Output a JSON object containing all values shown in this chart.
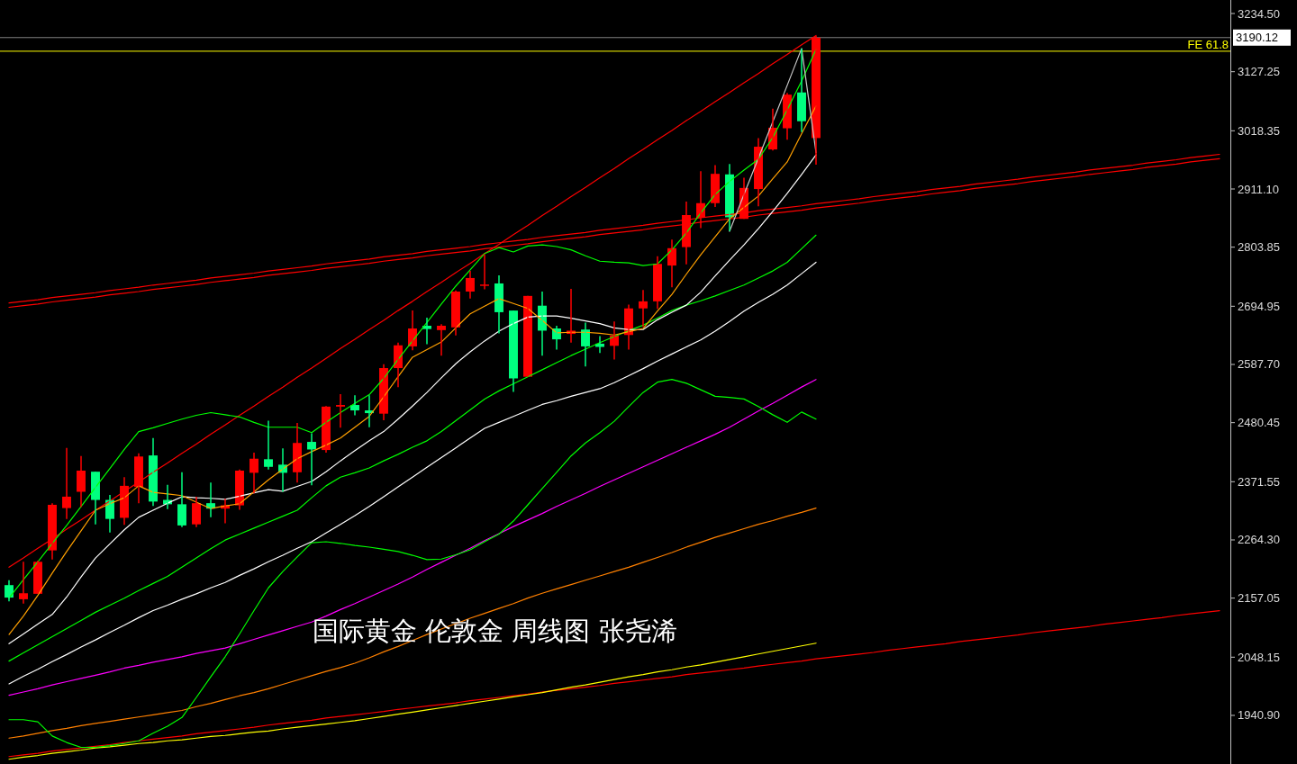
{
  "chart_data": {
    "type": "candlestick",
    "categories": [
      null,
      null,
      null,
      null,
      null,
      null,
      null,
      null,
      null,
      null,
      null,
      null,
      null,
      null,
      null,
      null,
      null,
      null,
      null,
      null,
      null,
      null,
      null,
      null,
      null,
      null,
      null,
      null,
      null,
      null,
      null,
      null,
      null,
      null,
      null,
      null,
      null,
      null,
      null,
      null,
      null,
      null,
      null,
      null,
      null,
      null,
      null,
      null,
      null,
      null,
      null,
      null,
      null,
      null,
      null,
      null,
      null,
      null,
      null,
      null,
      null,
      null,
      null,
      null,
      null,
      null,
      null,
      null,
      null,
      null,
      null,
      null,
      null,
      null,
      null,
      null,
      null,
      null,
      null,
      null,
      null,
      null,
      null,
      null,
      null
    ],
    "ylim": [
      1851.3,
      3259.4
    ],
    "yticks": [
      {
        "value": 3234.5,
        "label": "3234.50"
      },
      {
        "value": 3127.25,
        "label": "3127.25"
      },
      {
        "value": 3018.35,
        "label": "3018.35"
      },
      {
        "value": 2911.1,
        "label": "2911.10"
      },
      {
        "value": 2803.85,
        "label": "2803.85"
      },
      {
        "value": 2694.95,
        "label": "2694.95"
      },
      {
        "value": 2587.7,
        "label": "2587.70"
      },
      {
        "value": 2480.45,
        "label": "2480.45"
      },
      {
        "value": 2371.55,
        "label": "2371.55"
      },
      {
        "value": 2264.3,
        "label": "2264.30"
      },
      {
        "value": 2157.05,
        "label": "2157.05"
      },
      {
        "value": 2048.15,
        "label": "2048.15"
      },
      {
        "value": 1940.9,
        "label": "1940.90"
      }
    ],
    "tick_labels": "y",
    "grid": false,
    "annotations": [
      "国际黄金 伦敦金 周线图 张尧浠"
    ],
    "ref_lines": [
      {
        "axis": "y",
        "value": 3190.12,
        "label": "3190.12",
        "color": "#808080"
      },
      {
        "axis": "y",
        "value": 3165,
        "label": "FE 61.8",
        "color": "#ffff00"
      }
    ],
    "series": [
      {
        "type": "line",
        "color": "#ff0000",
        "values": [
          2701,
          2704,
          2707,
          2711,
          2714,
          2717,
          2720,
          2724,
          2727,
          2730,
          2734,
          2737,
          2740,
          2743,
          2747,
          2750,
          2753,
          2756,
          2760,
          2763,
          2766,
          2769,
          2773,
          2776,
          2779,
          2782,
          2786,
          2789,
          2792,
          2796,
          2799,
          2802,
          2805,
          2809,
          2812,
          2815,
          2818,
          2822,
          2825,
          2828,
          2831,
          2835,
          2838,
          2841,
          2844,
          2848,
          2851,
          2854,
          2858,
          2861,
          2864,
          2867,
          2871,
          2874,
          2877,
          2880,
          2884,
          2887,
          2890,
          2893,
          2897,
          2900,
          2903,
          2906,
          2910,
          2913,
          2916,
          2920,
          2923,
          2926,
          2929,
          2933,
          2936,
          2939,
          2942,
          2946,
          2949,
          2952,
          2955,
          2959,
          2962,
          2965,
          2969,
          2972,
          2975
        ]
      },
      {
        "type": "line",
        "color": "#ff0000",
        "values": [
          2693,
          2696,
          2699,
          2703,
          2706,
          2709,
          2712,
          2716,
          2719,
          2722,
          2726,
          2729,
          2732,
          2735,
          2739,
          2742,
          2745,
          2748,
          2752,
          2755,
          2758,
          2761,
          2765,
          2768,
          2771,
          2774,
          2778,
          2781,
          2784,
          2788,
          2791,
          2794,
          2797,
          2801,
          2804,
          2807,
          2810,
          2814,
          2817,
          2820,
          2823,
          2827,
          2830,
          2833,
          2836,
          2840,
          2843,
          2846,
          2850,
          2853,
          2856,
          2859,
          2863,
          2866,
          2869,
          2872,
          2876,
          2879,
          2882,
          2885,
          2889,
          2892,
          2895,
          2898,
          2902,
          2905,
          2908,
          2912,
          2915,
          2918,
          2921,
          2925,
          2928,
          2931,
          2934,
          2938,
          2941,
          2944,
          2947,
          2951,
          2954,
          2957,
          2961,
          2964,
          2967
        ]
      },
      {
        "type": "line",
        "color": "#ff0000",
        "values": [
          2214,
          2231,
          2249,
          2266,
          2284,
          2301,
          2319,
          2336,
          2354,
          2371,
          2389,
          2406,
          2424,
          2441,
          2459,
          2476,
          2494,
          2511,
          2529,
          2546,
          2564,
          2581,
          2599,
          2617,
          2634,
          2652,
          2669,
          2687,
          2704,
          2722,
          2739,
          2757,
          2774,
          2792,
          2809,
          2827,
          2844,
          2862,
          2879,
          2897,
          2914,
          2932,
          2949,
          2967,
          2984,
          3002,
          3019,
          3037,
          3054,
          3072,
          3089,
          3107,
          3124,
          3142,
          3159,
          3177,
          3194,
          null,
          null,
          null,
          null,
          null,
          null,
          null,
          null,
          null,
          null,
          null,
          null,
          null,
          null,
          null,
          null,
          null,
          null,
          null,
          null,
          null,
          null,
          null,
          null,
          null,
          null,
          null,
          null
        ]
      },
      {
        "type": "line",
        "color": "#ff0000",
        "values": [
          1865,
          1868,
          1871,
          1875,
          1878,
          1881,
          1884,
          1887,
          1891,
          1894,
          1897,
          1900,
          1903,
          1907,
          1910,
          1913,
          1916,
          1919,
          1923,
          1926,
          1929,
          1932,
          1936,
          1939,
          1942,
          1945,
          1948,
          1952,
          1955,
          1958,
          1961,
          1964,
          1968,
          1971,
          1974,
          1977,
          1980,
          1984,
          1987,
          1990,
          1993,
          1996,
          2000,
          2003,
          2006,
          2009,
          2012,
          2016,
          2019,
          2022,
          2025,
          2028,
          2032,
          2035,
          2038,
          2041,
          2045,
          2048,
          2051,
          2054,
          2057,
          2061,
          2064,
          2067,
          2070,
          2073,
          2077,
          2080,
          2083,
          2086,
          2089,
          2093,
          2096,
          2099,
          2102,
          2105,
          2109,
          2112,
          2115,
          2118,
          2121,
          2125,
          2128,
          2131,
          2134
        ]
      },
      {
        "type": "line",
        "color": "#ffff00",
        "values": [
          1860,
          1864,
          1867,
          1871,
          1874,
          1877,
          1881,
          1883,
          1886,
          1889,
          1891,
          1894,
          1896,
          1899,
          1902,
          1904,
          1907,
          1910,
          1912,
          1916,
          1919,
          1922,
          1925,
          1928,
          1931,
          1935,
          1939,
          1943,
          1947,
          1951,
          1955,
          1959,
          1963,
          1967,
          1971,
          1975,
          1979,
          1983,
          1988,
          1993,
          1997,
          2002,
          2007,
          2012,
          2016,
          2021,
          2025,
          2030,
          2034,
          2039,
          2044,
          2049,
          2054,
          2059,
          2064,
          2069,
          2074,
          null,
          null,
          null,
          null,
          null,
          null,
          null,
          null,
          null,
          null,
          null,
          null,
          null,
          null,
          null,
          null,
          null,
          null,
          null,
          null,
          null,
          null,
          null,
          null,
          null,
          null,
          null,
          null
        ]
      },
      {
        "type": "line",
        "color": "#ff8000",
        "values": [
          1899,
          1903,
          1908,
          1913,
          1917,
          1922,
          1926,
          1930,
          1934,
          1938,
          1942,
          1946,
          1950,
          1957,
          1963,
          1970,
          1977,
          1983,
          1990,
          1998,
          2006,
          2014,
          2022,
          2029,
          2037,
          2047,
          2058,
          2068,
          2079,
          2090,
          2100,
          2110,
          2120,
          2129,
          2138,
          2147,
          2157,
          2166,
          2174,
          2182,
          2190,
          2198,
          2206,
          2214,
          2223,
          2232,
          2241,
          2251,
          2260,
          2269,
          2277,
          2285,
          2293,
          2300,
          2308,
          2315,
          2323,
          null,
          null,
          null,
          null,
          null,
          null,
          null,
          null,
          null,
          null,
          null,
          null,
          null,
          null,
          null,
          null,
          null,
          null,
          null,
          null,
          null,
          null,
          null,
          null,
          null,
          null,
          null,
          null
        ]
      },
      {
        "type": "line",
        "color": "#ff00ff",
        "values": [
          1978,
          1984,
          1990,
          1997,
          2003,
          2009,
          2015,
          2021,
          2028,
          2033,
          2039,
          2044,
          2049,
          2055,
          2060,
          2065,
          2073,
          2081,
          2089,
          2097,
          2105,
          2113,
          2124,
          2136,
          2147,
          2159,
          2171,
          2183,
          2196,
          2210,
          2223,
          2236,
          2249,
          2263,
          2276,
          2289,
          2301,
          2313,
          2326,
          2338,
          2350,
          2363,
          2375,
          2387,
          2399,
          2411,
          2423,
          2435,
          2447,
          2459,
          2472,
          2487,
          2502,
          2516,
          2531,
          2546,
          2560,
          null,
          null,
          null,
          null,
          null,
          null,
          null,
          null,
          null,
          null,
          null,
          null,
          null,
          null,
          null,
          null,
          null,
          null,
          null,
          null,
          null,
          null,
          null,
          null,
          null,
          null,
          null,
          null
        ]
      },
      {
        "type": "line",
        "color": "#00ff00",
        "values": [
          1933,
          1933,
          1929,
          1903,
          1891,
          1882,
          1882,
          1885,
          1889,
          1894,
          1908,
          1921,
          1937,
          1974,
          2012,
          2049,
          2091,
          2134,
          2176,
          2206,
          2233,
          2259,
          2261,
          2258,
          2254,
          2251,
          2247,
          2243,
          2236,
          2228,
          2229,
          2237,
          2246,
          2261,
          2275,
          2299,
          2329,
          2359,
          2389,
          2419,
          2443,
          2462,
          2483,
          2510,
          2536,
          2555,
          2560,
          2553,
          2541,
          2529,
          2527,
          2524,
          2510,
          2495,
          2481,
          2500,
          2487,
          null,
          null,
          null,
          null,
          null,
          null,
          null,
          null,
          null,
          null,
          null,
          null,
          null,
          null,
          null,
          null,
          null,
          null,
          null,
          null,
          null,
          null,
          null,
          null,
          null,
          null,
          null,
          null
        ]
      },
      {
        "type": "line",
        "color": "#ffffff",
        "values": [
          1999,
          2013,
          2026,
          2040,
          2053,
          2067,
          2080,
          2094,
          2107,
          2121,
          2134,
          2144,
          2155,
          2165,
          2176,
          2186,
          2199,
          2211,
          2224,
          2236,
          2249,
          2261,
          2277,
          2293,
          2309,
          2326,
          2344,
          2362,
          2380,
          2398,
          2416,
          2434,
          2452,
          2470,
          2481,
          2492,
          2503,
          2514,
          2521,
          2529,
          2536,
          2543,
          2554,
          2567,
          2580,
          2594,
          2607,
          2620,
          2633,
          2649,
          2667,
          2686,
          2702,
          2717,
          2734,
          2755,
          2776,
          null,
          null,
          null,
          null,
          null,
          null,
          null,
          null,
          null,
          null,
          null,
          null,
          null,
          null,
          null,
          null,
          null,
          null,
          null,
          null,
          null,
          null,
          null,
          null,
          null,
          null,
          null,
          null
        ]
      },
      {
        "type": "line",
        "color": "#00ff00",
        "values": [
          2041,
          2056,
          2071,
          2086,
          2101,
          2116,
          2131,
          2144,
          2157,
          2171,
          2184,
          2197,
          2214,
          2231,
          2248,
          2264,
          2275,
          2286,
          2297,
          2308,
          2319,
          2342,
          2364,
          2380,
          2388,
          2397,
          2410,
          2422,
          2435,
          2447,
          2464,
          2484,
          2504,
          2524,
          2539,
          2552,
          2565,
          2578,
          2591,
          2604,
          2616,
          2628,
          2639,
          2650,
          2660,
          2673,
          2687,
          2697,
          2705,
          2714,
          2724,
          2734,
          2747,
          2760,
          2776,
          2801,
          2826,
          null,
          null,
          null,
          null,
          null,
          null,
          null,
          null,
          null,
          null,
          null,
          null,
          null,
          null,
          null,
          null,
          null,
          null,
          null,
          null,
          null,
          null,
          null,
          null,
          null,
          null,
          null,
          null
        ]
      },
      {
        "type": "line",
        "color": "#ffffff",
        "values": [
          2073,
          2091,
          2109,
          2127,
          2159,
          2196,
          2231,
          2257,
          2283,
          2306,
          2319,
          2332,
          2344,
          2342,
          2341,
          2339,
          2345,
          2351,
          2357,
          2354,
          2363,
          2372,
          2390,
          2410,
          2429,
          2447,
          2464,
          2487,
          2511,
          2536,
          2563,
          2589,
          2611,
          2631,
          2649,
          2663,
          2675,
          2677,
          2677,
          2673,
          2668,
          2663,
          2655,
          2652,
          2652,
          2670,
          2684,
          2697,
          2721,
          2751,
          2780,
          2808,
          2838,
          2870,
          2903,
          2938,
          2974,
          null,
          null,
          null,
          null,
          null,
          null,
          null,
          null,
          null,
          null,
          null,
          null,
          null,
          null,
          null,
          null,
          null,
          null,
          null,
          null,
          null,
          null,
          null,
          null,
          null,
          null,
          null,
          null
        ]
      },
      {
        "type": "line",
        "color": "#00ff00",
        "values": [
          2157,
          2191,
          2224,
          2258,
          2291,
          2326,
          2361,
          2396,
          2431,
          2464,
          2471,
          2479,
          2487,
          2494,
          2499,
          2495,
          2491,
          2481,
          2472,
          2472,
          2472,
          2462,
          2481,
          2499,
          2516,
          2532,
          2562,
          2597,
          2631,
          2665,
          2699,
          2732,
          2762,
          2792,
          2803,
          2795,
          2806,
          2808,
          2805,
          2799,
          2788,
          2778,
          2776,
          2775,
          2770,
          2773,
          2799,
          2830,
          2867,
          2901,
          2925,
          2946,
          2966,
          3006,
          3057,
          3110,
          3168,
          null,
          null,
          null,
          null,
          null,
          null,
          null,
          null,
          null,
          null,
          null,
          null,
          null,
          null,
          null,
          null,
          null,
          null,
          null,
          null,
          null,
          null,
          null,
          null,
          null,
          null,
          null,
          null
        ]
      },
      {
        "type": "line",
        "color": "#ffa000",
        "values": [
          2090,
          2124,
          2162,
          2203,
          2243,
          2281,
          2319,
          2331,
          2342,
          2364,
          2352,
          2349,
          2346,
          2334,
          2322,
          2327,
          2331,
          2353,
          2375,
          2395,
          2414,
          2427,
          2439,
          2452,
          2472,
          2492,
          2528,
          2565,
          2601,
          2615,
          2629,
          2655,
          2681,
          2695,
          2709,
          2700,
          2691,
          2669,
          2646,
          2647,
          2647,
          2645,
          2642,
          2648,
          2654,
          2686,
          2717,
          2754,
          2790,
          2823,
          2856,
          2877,
          2898,
          2930,
          2961,
          3013,
          3064,
          null,
          null,
          null,
          null,
          null,
          null,
          null,
          null,
          null,
          null,
          null,
          null,
          null,
          null,
          null,
          null,
          null,
          null,
          null,
          null,
          null,
          null,
          null,
          null,
          null,
          null,
          null,
          null
        ]
      },
      {
        "type": "line",
        "color": "#c8c8c8",
        "values": [
          null,
          null,
          null,
          null,
          null,
          null,
          null,
          null,
          null,
          null,
          null,
          null,
          null,
          null,
          null,
          null,
          null,
          null,
          null,
          null,
          null,
          null,
          null,
          null,
          null,
          null,
          null,
          null,
          null,
          null,
          null,
          null,
          null,
          null,
          null,
          null,
          null,
          null,
          null,
          null,
          null,
          null,
          null,
          null,
          null,
          null,
          null,
          null,
          null,
          null,
          2833,
          2901,
          2968,
          3035,
          3102,
          3170,
          2978,
          null,
          null,
          null,
          null,
          null,
          null,
          null,
          null,
          null,
          null,
          null,
          null,
          null,
          null,
          null,
          null,
          null,
          null,
          null,
          null,
          null,
          null,
          null,
          null,
          null,
          null,
          null,
          null
        ]
      },
      {
        "type": "candlestick",
        "ohlc": [
          [
            2181,
            2190,
            2151,
            2158
          ],
          [
            2155,
            2224,
            2147,
            2166
          ],
          [
            2165,
            2226,
            2165,
            2224
          ],
          [
            2245,
            2332,
            2228,
            2329
          ],
          [
            2323,
            2434,
            2303,
            2344
          ],
          [
            2353,
            2419,
            2325,
            2392
          ],
          [
            2390,
            2390,
            2293,
            2338
          ],
          [
            2338,
            2347,
            2278,
            2303
          ],
          [
            2305,
            2380,
            2292,
            2364
          ],
          [
            2362,
            2424,
            2332,
            2418
          ],
          [
            2420,
            2452,
            2327,
            2335
          ],
          [
            2338,
            2366,
            2321,
            2330
          ],
          [
            2330,
            2389,
            2288,
            2291
          ],
          [
            2293,
            2344,
            2288,
            2332
          ],
          [
            2332,
            2370,
            2306,
            2322
          ],
          [
            2322,
            2340,
            2295,
            2328
          ],
          [
            2328,
            2394,
            2320,
            2392
          ],
          [
            2388,
            2425,
            2350,
            2414
          ],
          [
            2413,
            2484,
            2394,
            2399
          ],
          [
            2403,
            2433,
            2353,
            2388
          ],
          [
            2389,
            2480,
            2370,
            2443
          ],
          [
            2445,
            2461,
            2365,
            2431
          ],
          [
            2430,
            2511,
            2425,
            2510
          ],
          [
            2510,
            2533,
            2471,
            2513
          ],
          [
            2513,
            2531,
            2494,
            2503
          ],
          [
            2503,
            2531,
            2472,
            2498
          ],
          [
            2497,
            2588,
            2485,
            2581
          ],
          [
            2581,
            2628,
            2546,
            2623
          ],
          [
            2621,
            2687,
            2614,
            2654
          ],
          [
            2659,
            2674,
            2625,
            2653
          ],
          [
            2651,
            2662,
            2604,
            2659
          ],
          [
            2656,
            2724,
            2641,
            2722
          ],
          [
            2722,
            2760,
            2709,
            2747
          ],
          [
            2734,
            2791,
            2726,
            2735
          ],
          [
            2737,
            2752,
            2645,
            2684
          ],
          [
            2687,
            2687,
            2537,
            2562
          ],
          [
            2565,
            2714,
            2565,
            2714
          ],
          [
            2696,
            2722,
            2604,
            2650
          ],
          [
            2654,
            2659,
            2615,
            2634
          ],
          [
            2644,
            2727,
            2628,
            2650
          ],
          [
            2652,
            2665,
            2584,
            2621
          ],
          [
            2626,
            2640,
            2609,
            2620
          ],
          [
            2622,
            2667,
            2597,
            2641
          ],
          [
            2642,
            2698,
            2615,
            2691
          ],
          [
            2691,
            2725,
            2657,
            2704
          ],
          [
            2704,
            2787,
            2690,
            2773
          ],
          [
            2770,
            2818,
            2730,
            2802
          ],
          [
            2804,
            2888,
            2772,
            2863
          ],
          [
            2858,
            2944,
            2839,
            2885
          ],
          [
            2885,
            2955,
            2878,
            2939
          ],
          [
            2938,
            2957,
            2833,
            2859
          ],
          [
            2856,
            2932,
            2856,
            2913
          ],
          [
            2911,
            3005,
            2879,
            2989
          ],
          [
            2984,
            3059,
            2982,
            3024
          ],
          [
            3023,
            3088,
            3002,
            3085
          ],
          [
            3089,
            3170,
            3016,
            3036
          ],
          [
            3005,
            3193,
            2956,
            3190
          ],
          null,
          null,
          null,
          null,
          null,
          null,
          null,
          null,
          null,
          null,
          null,
          null,
          null,
          null,
          null,
          null,
          null,
          null,
          null,
          null,
          null,
          null,
          null,
          null,
          null,
          null,
          null,
          null
        ],
        "colors": [
          "#00ff80",
          "#ff0000",
          "#ff0000",
          "#ff0000",
          "#ff0000",
          "#ff0000",
          "#00ff80",
          "#00ff80",
          "#ff0000",
          "#ff0000",
          "#00ff80",
          "#00ff80",
          "#00ff80",
          "#ff0000",
          "#00ff80",
          "#ff0000",
          "#ff0000",
          "#ff0000",
          "#00ff80",
          "#00ff80",
          "#ff0000",
          "#00ff80",
          "#ff0000",
          "#ff0000",
          "#00ff80",
          "#00ff80",
          "#ff0000",
          "#ff0000",
          "#ff0000",
          "#00ff80",
          "#ff0000",
          "#ff0000",
          "#ff0000",
          "#ff0000",
          "#00ff80",
          "#00ff80",
          "#ff0000",
          "#00ff80",
          "#00ff80",
          "#ff0000",
          "#00ff80",
          "#00ff80",
          "#ff0000",
          "#ff0000",
          "#ff0000",
          "#ff0000",
          "#ff0000",
          "#ff0000",
          "#ff0000",
          "#ff0000",
          "#00ff80",
          "#ff0000",
          "#ff0000",
          "#ff0000",
          "#ff0000",
          "#00ff80",
          "#ff0000",
          null,
          null,
          null,
          null,
          null,
          null,
          null,
          null,
          null,
          null,
          null,
          null,
          null,
          null,
          null,
          null,
          null,
          null,
          null,
          null,
          null,
          null,
          null,
          null,
          null,
          null,
          null,
          null
        ]
      }
    ]
  }
}
